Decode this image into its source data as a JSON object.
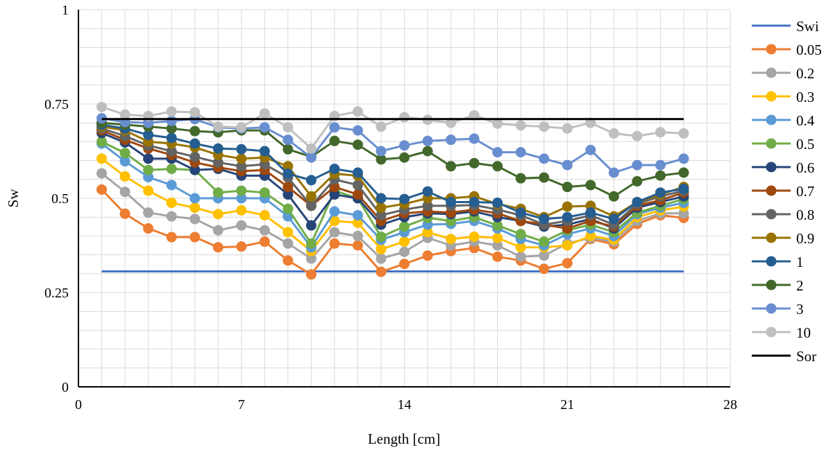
{
  "chart_data": {
    "type": "line",
    "title": "",
    "xlabel": "Length [cm]",
    "ylabel": "Sw",
    "xlim": [
      0,
      28
    ],
    "ylim": [
      0,
      1
    ],
    "x_ticks": [
      "0",
      "7",
      "14",
      "21",
      "28"
    ],
    "y_ticks": [
      "0",
      "0.25",
      "0.5",
      "0.75",
      "1"
    ],
    "grid": "on",
    "legend_position": "right",
    "x": [
      1,
      2,
      3,
      4,
      5,
      6,
      7,
      8,
      9,
      10,
      11,
      12,
      13,
      14,
      15,
      16,
      17,
      18,
      19,
      20,
      21,
      22,
      23,
      24,
      25,
      26
    ],
    "series": [
      {
        "name": "Swi",
        "color": "#4472C4",
        "markers": false,
        "x": [
          1,
          26
        ],
        "values": [
          0.306,
          0.306
        ]
      },
      {
        "name": "0.05",
        "color": "#ED7D31",
        "markers": true,
        "values": [
          0.523,
          0.459,
          0.42,
          0.397,
          0.397,
          0.37,
          0.372,
          0.385,
          0.335,
          0.298,
          0.38,
          0.375,
          0.305,
          0.326,
          0.348,
          0.36,
          0.368,
          0.345,
          0.335,
          0.313,
          0.328,
          0.392,
          0.378,
          0.432,
          0.455,
          0.448
        ]
      },
      {
        "name": "0.2",
        "color": "#A5A5A5",
        "markers": true,
        "values": [
          0.566,
          0.517,
          0.462,
          0.452,
          0.445,
          0.415,
          0.428,
          0.415,
          0.38,
          0.34,
          0.41,
          0.4,
          0.34,
          0.358,
          0.395,
          0.375,
          0.385,
          0.375,
          0.345,
          0.348,
          0.38,
          0.395,
          0.385,
          0.44,
          0.46,
          0.46
        ]
      },
      {
        "name": "0.3",
        "color": "#FFC000",
        "markers": true,
        "values": [
          0.605,
          0.558,
          0.52,
          0.488,
          0.475,
          0.458,
          0.468,
          0.455,
          0.41,
          0.36,
          0.44,
          0.435,
          0.365,
          0.385,
          0.41,
          0.392,
          0.398,
          0.395,
          0.37,
          0.37,
          0.375,
          0.4,
          0.39,
          0.45,
          0.468,
          0.478
        ]
      },
      {
        "name": "0.4",
        "color": "#5B9BD5",
        "markers": true,
        "values": [
          0.645,
          0.598,
          0.556,
          0.535,
          0.5,
          0.5,
          0.5,
          0.5,
          0.452,
          0.37,
          0.465,
          0.455,
          0.39,
          0.41,
          0.43,
          0.432,
          0.44,
          0.42,
          0.392,
          0.375,
          0.405,
          0.42,
          0.4,
          0.458,
          0.475,
          0.488
        ]
      },
      {
        "name": "0.5",
        "color": "#70AD47",
        "markers": true,
        "values": [
          0.65,
          0.62,
          0.575,
          0.578,
          0.575,
          0.515,
          0.52,
          0.515,
          0.472,
          0.38,
          0.52,
          0.5,
          0.398,
          0.425,
          0.448,
          0.44,
          0.45,
          0.428,
          0.405,
          0.385,
          0.415,
          0.43,
          0.41,
          0.462,
          0.48,
          0.498
        ]
      },
      {
        "name": "0.6",
        "color": "#264478",
        "markers": true,
        "values": [
          0.673,
          0.648,
          0.605,
          0.605,
          0.575,
          0.578,
          0.56,
          0.56,
          0.51,
          0.428,
          0.51,
          0.5,
          0.43,
          0.45,
          0.46,
          0.458,
          0.465,
          0.45,
          0.44,
          0.425,
          0.43,
          0.445,
          0.42,
          0.475,
          0.49,
          0.505
        ]
      },
      {
        "name": "0.7",
        "color": "#9E480E",
        "markers": true,
        "values": [
          0.68,
          0.655,
          0.632,
          0.615,
          0.595,
          0.582,
          0.572,
          0.575,
          0.53,
          0.48,
          0.53,
          0.51,
          0.44,
          0.46,
          0.465,
          0.462,
          0.47,
          0.46,
          0.44,
          0.43,
          0.42,
          0.44,
          0.425,
          0.48,
          0.495,
          0.515
        ]
      },
      {
        "name": "0.8",
        "color": "#636363",
        "markers": true,
        "values": [
          0.685,
          0.665,
          0.64,
          0.625,
          0.61,
          0.595,
          0.585,
          0.59,
          0.555,
          0.48,
          0.55,
          0.535,
          0.455,
          0.47,
          0.48,
          0.48,
          0.482,
          0.47,
          0.455,
          0.43,
          0.44,
          0.455,
          0.43,
          0.485,
          0.505,
          0.52
        ]
      },
      {
        "name": "0.9",
        "color": "#997300",
        "markers": true,
        "values": [
          0.69,
          0.68,
          0.65,
          0.645,
          0.635,
          0.615,
          0.605,
          0.608,
          0.585,
          0.505,
          0.565,
          0.56,
          0.475,
          0.485,
          0.5,
          0.5,
          0.505,
          0.485,
          0.472,
          0.45,
          0.478,
          0.48,
          0.452,
          0.49,
          0.51,
          0.53
        ]
      },
      {
        "name": "1",
        "color": "#255E91",
        "markers": true,
        "values": [
          0.695,
          0.685,
          0.668,
          0.66,
          0.645,
          0.632,
          0.63,
          0.625,
          0.565,
          0.548,
          0.578,
          0.568,
          0.5,
          0.498,
          0.518,
          0.49,
          0.49,
          0.488,
          0.462,
          0.445,
          0.45,
          0.462,
          0.445,
          0.49,
          0.515,
          0.525
        ]
      },
      {
        "name": "2",
        "color": "#43682B",
        "markers": true,
        "values": [
          0.7,
          0.695,
          0.69,
          0.685,
          0.678,
          0.675,
          0.68,
          0.68,
          0.63,
          0.61,
          0.652,
          0.642,
          0.603,
          0.608,
          0.625,
          0.585,
          0.593,
          0.585,
          0.553,
          0.555,
          0.53,
          0.535,
          0.505,
          0.545,
          0.56,
          0.568
        ]
      },
      {
        "name": "3",
        "color": "#698ED0",
        "markers": true,
        "values": [
          0.712,
          0.702,
          0.7,
          0.705,
          0.71,
          0.688,
          0.685,
          0.688,
          0.655,
          0.608,
          0.688,
          0.68,
          0.625,
          0.64,
          0.652,
          0.655,
          0.658,
          0.622,
          0.622,
          0.605,
          0.588,
          0.628,
          0.568,
          0.588,
          0.588,
          0.605
        ]
      },
      {
        "name": "10",
        "color": "#BFBFBF",
        "markers": true,
        "values": [
          0.742,
          0.722,
          0.718,
          0.73,
          0.728,
          0.69,
          0.688,
          0.725,
          0.688,
          0.632,
          0.718,
          0.73,
          0.69,
          0.715,
          0.708,
          0.7,
          0.72,
          0.698,
          0.693,
          0.69,
          0.685,
          0.7,
          0.672,
          0.665,
          0.675,
          0.672
        ]
      },
      {
        "name": "Sor",
        "color": "#000000",
        "markers": false,
        "x": [
          1,
          26
        ],
        "values": [
          0.71,
          0.71
        ]
      }
    ]
  }
}
